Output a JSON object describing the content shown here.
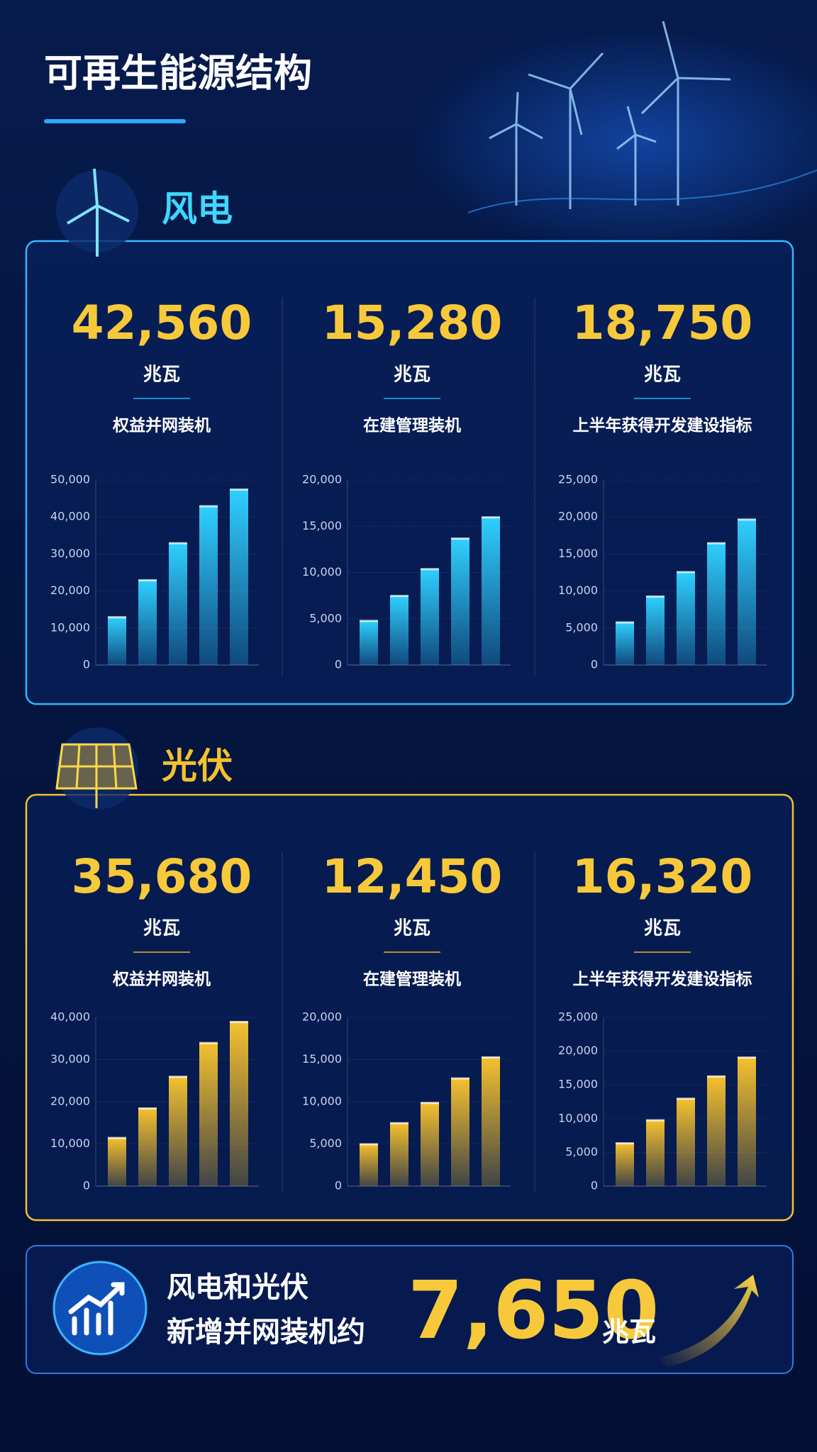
{
  "title": "可再生能源结构",
  "sections": [
    {
      "name": "风电",
      "panels": [
        {
          "value": "42,560",
          "unit": "兆瓦",
          "label": "权益并网装机",
          "chart": {
            "type": "bar",
            "color": "#2fd0ff",
            "values": [
              13000,
              23000,
              33000,
              43000,
              47500
            ],
            "ylim": [
              0,
              50000
            ],
            "yticks": [
              0,
              {
                "value": 10000,
                "label": "10,000"
              },
              {
                "value": 20000,
                "label": "20,000"
              },
              {
                "value": 30000,
                "label": "30,000"
              },
              {
                "value": 40000,
                "label": "40,000"
              },
              {
                "value": 50000,
                "label": "50,000"
              }
            ]
          }
        },
        {
          "value": "15,280",
          "unit": "兆瓦",
          "label": "在建管理装机",
          "chart": {
            "type": "bar",
            "color": "#2fd0ff",
            "values": [
              4800,
              7500,
              10400,
              13700,
              16000
            ],
            "ylim": [
              0,
              20000
            ],
            "yticks": [
              0,
              {
                "value": 5000,
                "label": "5,000"
              },
              {
                "value": 10000,
                "label": "10,000"
              },
              {
                "value": 15000,
                "label": "15,000"
              },
              {
                "value": 20000,
                "label": "20,000"
              }
            ]
          }
        },
        {
          "value": "18,750",
          "unit": "兆瓦",
          "label": "上半年获得开发建设指标",
          "chart": {
            "type": "bar",
            "color": "#2fd0ff",
            "values": [
              5800,
              9300,
              12600,
              16500,
              19700
            ],
            "ylim": [
              0,
              25000
            ],
            "yticks": [
              0,
              {
                "value": 5000,
                "label": "5,000"
              },
              {
                "value": 10000,
                "label": "10,000"
              },
              {
                "value": 15000,
                "label": "15,000"
              },
              {
                "value": 20000,
                "label": "20,000"
              },
              {
                "value": 25000,
                "label": "25,000"
              }
            ]
          }
        }
      ]
    },
    {
      "name": "光伏",
      "panels": [
        {
          "value": "35,680",
          "unit": "兆瓦",
          "label": "权益并网装机",
          "chart": {
            "type": "bar",
            "color": "#f5c12e",
            "values": [
              11500,
              18500,
              26000,
              34000,
              39000
            ],
            "ylim": [
              0,
              40000
            ],
            "yticks": [
              0,
              {
                "value": 10000,
                "label": "10,000"
              },
              {
                "value": 20000,
                "label": "20,000"
              },
              {
                "value": 30000,
                "label": "30,000"
              },
              {
                "value": 40000,
                "label": "40,000"
              }
            ]
          }
        },
        {
          "value": "12,450",
          "unit": "兆瓦",
          "label": "在建管理装机",
          "chart": {
            "type": "bar",
            "color": "#f5c12e",
            "values": [
              5000,
              7500,
              9900,
              12800,
              15300
            ],
            "ylim": [
              0,
              20000
            ],
            "yticks": [
              0,
              {
                "value": 5000,
                "label": "5,000"
              },
              {
                "value": 10000,
                "label": "10,000"
              },
              {
                "value": 15000,
                "label": "15,000"
              },
              {
                "value": 20000,
                "label": "20,000"
              }
            ]
          }
        },
        {
          "value": "16,320",
          "unit": "兆瓦",
          "label": "上半年获得开发建设指标",
          "chart": {
            "type": "bar",
            "color": "#f5c12e",
            "values": [
              6400,
              9800,
              13000,
              16300,
              19100
            ],
            "ylim": [
              0,
              25000
            ],
            "yticks": [
              0,
              {
                "value": 5000,
                "label": "5,000"
              },
              {
                "value": 10000,
                "label": "10,000"
              },
              {
                "value": 15000,
                "label": "15,000"
              },
              {
                "value": 20000,
                "label": "20,000"
              },
              {
                "value": 25000,
                "label": "25,000"
              }
            ]
          }
        }
      ]
    }
  ],
  "summary": {
    "line1": "风电和光伏",
    "line2": "新增并网装机约",
    "value": "7,650",
    "unit": "兆瓦"
  }
}
